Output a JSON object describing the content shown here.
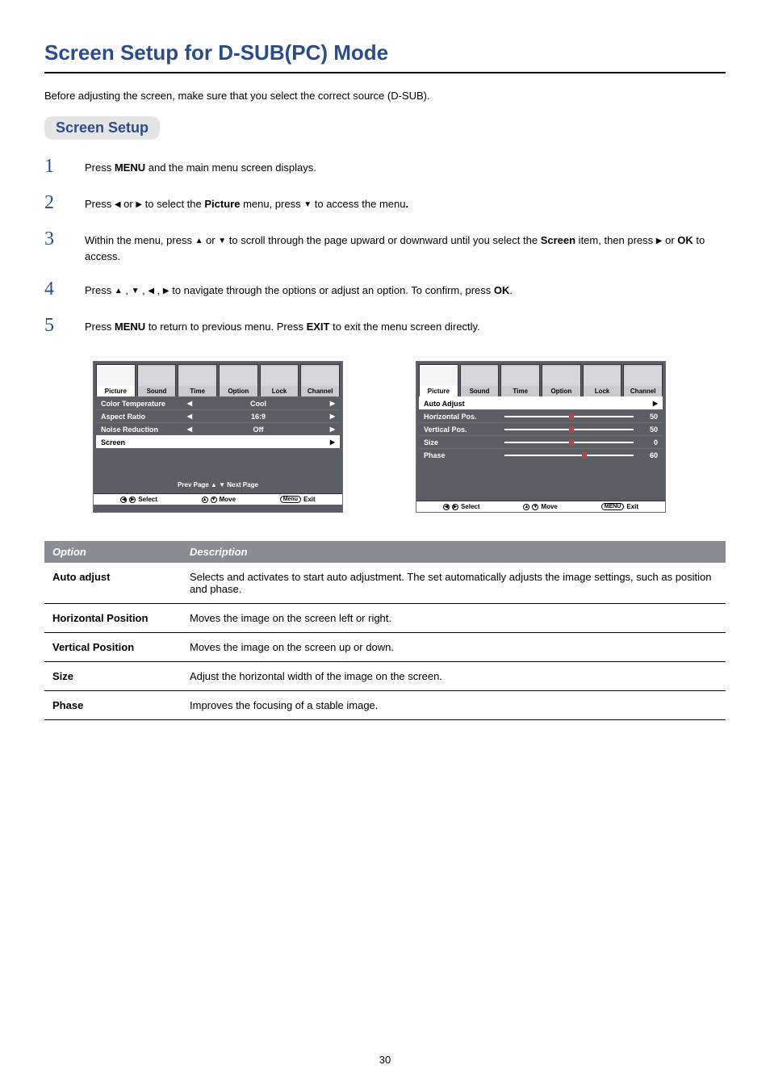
{
  "page": {
    "title": "Screen Setup for D-SUB(PC) Mode",
    "intro": "Before adjusting the screen, make sure that you select the correct source (D-SUB).",
    "section_title": "Screen Setup",
    "page_number": "30"
  },
  "steps": [
    {
      "num": "1",
      "html": "Press <b>MENU</b> and the main menu screen displays."
    },
    {
      "num": "2",
      "html": "Press <span class='arrow-glyph'>◀</span> or <span class='arrow-glyph'>▶</span> to select the  <b>Picture</b> menu,  press <span class='arrow-glyph'>▼</span>  to access the menu<b>.</b>"
    },
    {
      "num": "3",
      "html": "Within the menu, press <span class='arrow-glyph'>▲</span> or <span class='arrow-glyph'>▼</span>  to scroll through the page upward or downward until you select the <b>Screen</b> item, then press  <span class='arrow-glyph'>▶</span> or <b>OK</b> to access."
    },
    {
      "num": "4",
      "html": "Press <span class='arrow-glyph'>▲</span> , <span class='arrow-glyph'>▼</span> , <span class='arrow-glyph'>◀</span> , <span class='arrow-glyph'>▶</span>  to navigate through the options or adjust an option.  To confirm, press <b>OK</b>."
    },
    {
      "num": "5",
      "html": "Press <b>MENU</b> to return to previous menu. Press <b>EXIT</b> to exit the menu screen directly."
    }
  ],
  "osd": {
    "tabs": [
      "Picture",
      "Sound",
      "Time",
      "Option",
      "Lock",
      "Channel"
    ],
    "left": {
      "rows": [
        {
          "label": "Color Temperature",
          "value": "Cool",
          "type": "lr"
        },
        {
          "label": "Aspect Ratio",
          "value": "16:9",
          "type": "lr"
        },
        {
          "label": "Noise Reduction",
          "value": "Off",
          "type": "lr"
        },
        {
          "label": "Screen",
          "type": "enter",
          "selected": true
        }
      ],
      "pager": "Prev  Page ▲   ▼ Next  Page"
    },
    "right": {
      "rows": [
        {
          "label": "Auto Adjust",
          "type": "enter",
          "selected": true
        },
        {
          "label": "Horizontal Pos.",
          "type": "slider",
          "value": "50",
          "pos": 50
        },
        {
          "label": "Vertical Pos.",
          "type": "slider",
          "value": "50",
          "pos": 50
        },
        {
          "label": "Size",
          "type": "slider",
          "value": "0",
          "pos": 50
        },
        {
          "label": "Phase",
          "type": "slider",
          "value": "60",
          "pos": 60
        }
      ]
    },
    "footer": {
      "select": "Select",
      "move": "Move",
      "exit": "Exit",
      "menu_key": "Menu",
      "menu_key2": "MENU"
    }
  },
  "table": {
    "head_option": "Option",
    "head_desc": "Description",
    "rows": [
      {
        "opt": "Auto adjust",
        "desc": "Selects and activates to start auto adjustment. The set automatically adjusts the image settings, such as position and phase."
      },
      {
        "opt": "Horizontal Position",
        "desc": "Moves the image on the screen left or right."
      },
      {
        "opt": "Vertical Position",
        "desc": "Moves the image on the screen up or down."
      },
      {
        "opt": "Size",
        "desc": "Adjust the horizontal width of the image on the screen."
      },
      {
        "opt": "Phase",
        "desc": "Improves the focusing of a stable image."
      }
    ]
  },
  "colors": {
    "title": "#2a4d8a",
    "rule": "#000000",
    "section_bg": "#e5e5e5",
    "osd_bg": "#5b5e64",
    "osd_border": "#6a6d72",
    "table_head_bg": "#8a8d94",
    "slider_handle": "#a84a4a"
  }
}
